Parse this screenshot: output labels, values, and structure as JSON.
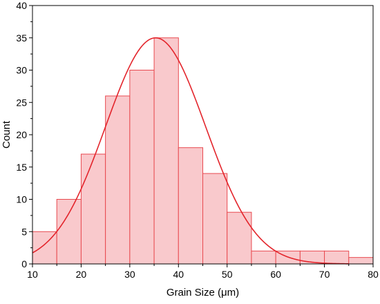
{
  "chart_data": {
    "type": "bar",
    "subtype": "histogram",
    "title": "",
    "xlabel": "Grain Size (μm)",
    "ylabel": "Count",
    "xlim": [
      10,
      80
    ],
    "ylim": [
      0,
      40
    ],
    "x_ticks": [
      10,
      20,
      30,
      40,
      50,
      60,
      70,
      80
    ],
    "y_ticks": [
      0,
      5,
      10,
      15,
      20,
      25,
      30,
      35,
      40
    ],
    "bins": [
      {
        "start": 10,
        "end": 15,
        "count": 5
      },
      {
        "start": 15,
        "end": 20,
        "count": 10
      },
      {
        "start": 20,
        "end": 25,
        "count": 17
      },
      {
        "start": 25,
        "end": 30,
        "count": 26
      },
      {
        "start": 30,
        "end": 35,
        "count": 30
      },
      {
        "start": 35,
        "end": 40,
        "count": 35
      },
      {
        "start": 40,
        "end": 45,
        "count": 18
      },
      {
        "start": 45,
        "end": 50,
        "count": 14
      },
      {
        "start": 50,
        "end": 55,
        "count": 8
      },
      {
        "start": 55,
        "end": 60,
        "count": 2
      },
      {
        "start": 60,
        "end": 65,
        "count": 2
      },
      {
        "start": 65,
        "end": 70,
        "count": 2
      },
      {
        "start": 70,
        "end": 75,
        "count": 2
      },
      {
        "start": 75,
        "end": 80,
        "count": 1
      }
    ],
    "fit_curve": {
      "type": "normal",
      "peak": 35,
      "mean": 35.3,
      "sd": 10.3,
      "x_range": [
        10,
        75
      ]
    },
    "grid": false,
    "legend": "none",
    "colors": {
      "bar_fill": "#f9c9cc",
      "bar_edge": "#e8494f",
      "curve": "#e3242b",
      "axis": "#000000"
    }
  }
}
